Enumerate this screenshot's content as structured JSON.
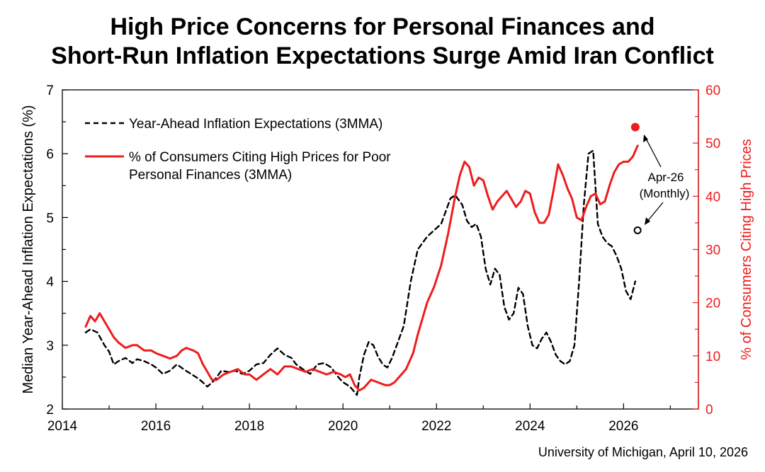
{
  "chart_data": {
    "type": "line",
    "title_line1": "High Price Concerns for Personal Finances and",
    "title_line2": "Short-Run Inflation Expectations Surge Amid Iran Conflict",
    "source": "University of Michigan, April 10, 2026",
    "y_left_label": "Median Year-Ahead Inflation Expectations (%)",
    "y_right_label": "% of Consumers Citing High Prices",
    "x_ticks": [
      "2014",
      "2016",
      "2018",
      "2020",
      "2022",
      "2024",
      "2026"
    ],
    "y_left_ticks": [
      "2",
      "3",
      "4",
      "5",
      "6",
      "7"
    ],
    "y_right_ticks": [
      "0",
      "10",
      "20",
      "30",
      "40",
      "50",
      "60"
    ],
    "xlim": [
      2014,
      2027.6
    ],
    "ylim_left": [
      2,
      7
    ],
    "ylim_right": [
      0,
      60
    ],
    "grid": false,
    "legend_position": "top-left",
    "colors": {
      "expectations": "#000000",
      "high_prices": "#ee1c1c"
    },
    "series": [
      {
        "name": "Year-Ahead Inflation Expectations (3MMA)",
        "axis": "left",
        "style": "dashed",
        "x": [
          2014.5,
          2014.6,
          2014.75,
          2014.9,
          2015.0,
          2015.1,
          2015.2,
          2015.35,
          2015.5,
          2015.6,
          2015.75,
          2015.9,
          2016.0,
          2016.15,
          2016.3,
          2016.45,
          2016.6,
          2016.75,
          2016.9,
          2017.0,
          2017.1,
          2017.25,
          2017.4,
          2017.55,
          2017.7,
          2017.85,
          2018.0,
          2018.15,
          2018.3,
          2018.45,
          2018.6,
          2018.75,
          2018.9,
          2019.0,
          2019.15,
          2019.3,
          2019.45,
          2019.6,
          2019.75,
          2019.9,
          2020.0,
          2020.15,
          2020.3,
          2020.35,
          2020.45,
          2020.55,
          2020.65,
          2020.75,
          2020.85,
          2020.95,
          2021.05,
          2021.15,
          2021.3,
          2021.45,
          2021.6,
          2021.7,
          2021.8,
          2021.95,
          2022.1,
          2022.2,
          2022.3,
          2022.4,
          2022.55,
          2022.65,
          2022.75,
          2022.85,
          2022.95,
          2023.05,
          2023.15,
          2023.25,
          2023.35,
          2023.45,
          2023.55,
          2023.65,
          2023.75,
          2023.85,
          2023.95,
          2024.05,
          2024.15,
          2024.25,
          2024.35,
          2024.45,
          2024.55,
          2024.65,
          2024.75,
          2024.85,
          2024.95,
          2025.05,
          2025.15,
          2025.25,
          2025.35,
          2025.45,
          2025.55,
          2025.65,
          2025.75,
          2025.85,
          2025.95,
          2026.05,
          2026.15,
          2026.25
        ],
        "y": [
          3.2,
          3.25,
          3.2,
          3.0,
          2.9,
          2.7,
          2.75,
          2.8,
          2.72,
          2.78,
          2.75,
          2.7,
          2.65,
          2.55,
          2.6,
          2.7,
          2.62,
          2.55,
          2.48,
          2.42,
          2.35,
          2.45,
          2.6,
          2.58,
          2.6,
          2.55,
          2.6,
          2.7,
          2.72,
          2.85,
          2.95,
          2.85,
          2.8,
          2.7,
          2.62,
          2.55,
          2.7,
          2.72,
          2.65,
          2.5,
          2.42,
          2.35,
          2.22,
          2.5,
          2.85,
          3.05,
          3.0,
          2.82,
          2.7,
          2.65,
          2.8,
          3.0,
          3.3,
          4.0,
          4.5,
          4.6,
          4.7,
          4.8,
          4.9,
          5.1,
          5.3,
          5.35,
          5.2,
          4.95,
          4.85,
          4.9,
          4.7,
          4.2,
          3.95,
          4.2,
          4.1,
          3.6,
          3.4,
          3.5,
          3.9,
          3.8,
          3.3,
          3.0,
          2.95,
          3.1,
          3.2,
          3.05,
          2.85,
          2.75,
          2.7,
          2.75,
          3.0,
          4.0,
          5.2,
          6.0,
          6.05,
          4.9,
          4.7,
          4.6,
          4.55,
          4.4,
          4.2,
          3.85,
          3.72,
          4.0
        ]
      },
      {
        "name": "% of Consumers Citing High Prices for Poor Personal Finances (3MMA)",
        "legend_line1": "% of Consumers Citing High Prices for Poor",
        "legend_line2": "Personal Finances (3MMA)",
        "axis": "right",
        "style": "solid",
        "x": [
          2014.5,
          2014.6,
          2014.7,
          2014.8,
          2014.9,
          2015.0,
          2015.1,
          2015.2,
          2015.35,
          2015.5,
          2015.6,
          2015.75,
          2015.9,
          2016.0,
          2016.15,
          2016.3,
          2016.45,
          2016.55,
          2016.65,
          2016.8,
          2016.9,
          2017.0,
          2017.1,
          2017.2,
          2017.3,
          2017.45,
          2017.6,
          2017.75,
          2017.9,
          2018.0,
          2018.15,
          2018.3,
          2018.45,
          2018.6,
          2018.75,
          2018.9,
          2019.05,
          2019.2,
          2019.35,
          2019.5,
          2019.65,
          2019.8,
          2019.95,
          2020.05,
          2020.15,
          2020.25,
          2020.35,
          2020.45,
          2020.6,
          2020.75,
          2020.9,
          2021.0,
          2021.1,
          2021.2,
          2021.35,
          2021.5,
          2021.6,
          2021.7,
          2021.8,
          2021.95,
          2022.1,
          2022.25,
          2022.4,
          2022.5,
          2022.6,
          2022.7,
          2022.8,
          2022.9,
          2023.0,
          2023.1,
          2023.2,
          2023.3,
          2023.4,
          2023.5,
          2023.6,
          2023.7,
          2023.8,
          2023.9,
          2024.0,
          2024.1,
          2024.2,
          2024.3,
          2024.4,
          2024.5,
          2024.6,
          2024.7,
          2024.8,
          2024.9,
          2025.0,
          2025.1,
          2025.2,
          2025.3,
          2025.4,
          2025.5,
          2025.6,
          2025.7,
          2025.8,
          2025.9,
          2026.0,
          2026.1,
          2026.2,
          2026.3
        ],
        "y": [
          15.5,
          17.5,
          16.5,
          18.0,
          16.5,
          15.0,
          13.5,
          12.5,
          11.5,
          12.0,
          12.0,
          11.0,
          11.0,
          10.5,
          10.0,
          9.5,
          10.0,
          11.0,
          11.5,
          11.0,
          10.5,
          8.5,
          7.0,
          5.5,
          5.5,
          6.5,
          7.0,
          7.5,
          6.5,
          6.5,
          5.5,
          6.5,
          7.5,
          6.5,
          8.0,
          8.0,
          7.5,
          7.0,
          7.5,
          7.0,
          6.5,
          7.0,
          6.5,
          6.0,
          6.5,
          4.5,
          3.5,
          4.0,
          5.5,
          5.0,
          4.5,
          4.5,
          5.0,
          6.0,
          7.5,
          10.5,
          14.0,
          17.0,
          20.0,
          23.0,
          27.0,
          33.0,
          40.0,
          44.0,
          46.5,
          45.5,
          42.0,
          43.5,
          43.0,
          40.0,
          37.5,
          39.0,
          40.0,
          41.0,
          39.5,
          38.0,
          39.0,
          41.0,
          40.5,
          37.0,
          35.0,
          35.0,
          36.5,
          41.0,
          46.0,
          44.0,
          41.5,
          39.5,
          36.0,
          35.5,
          38.0,
          40.0,
          40.5,
          38.5,
          39.0,
          42.0,
          44.5,
          46.0,
          46.5,
          46.5,
          47.5,
          49.5
        ]
      }
    ],
    "monthly_points": [
      {
        "series": "high_prices",
        "axis": "right",
        "x": 2026.25,
        "y": 53,
        "style": "filled"
      },
      {
        "series": "expectations",
        "axis": "left",
        "x": 2026.3,
        "y": 4.8,
        "style": "hollow"
      }
    ],
    "annotation": {
      "line1": "Apr-26",
      "line2": "(Monthly)"
    }
  }
}
